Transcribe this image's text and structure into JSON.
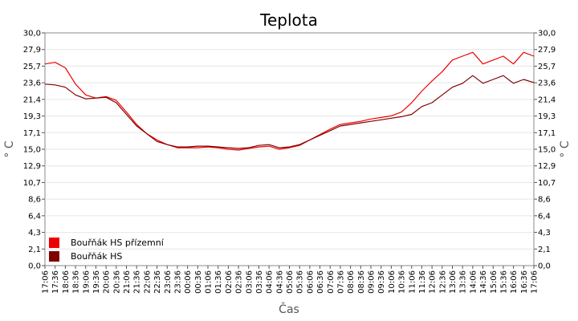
{
  "chart_data": {
    "type": "line",
    "title": "Teplota",
    "xlabel": "Čas",
    "ylabel": "° C",
    "ylabel_right": "° C",
    "ylim": [
      0,
      30
    ],
    "yticks": [
      "0,0",
      "2,1",
      "4,3",
      "6,4",
      "8,6",
      "10,7",
      "12,9",
      "15,0",
      "17,1",
      "19,3",
      "21,4",
      "23,6",
      "25,7",
      "27,9",
      "30,0"
    ],
    "xticks": [
      "17:06",
      "17:36",
      "18:06",
      "18:36",
      "19:06",
      "19:36",
      "20:06",
      "20:36",
      "21:06",
      "21:36",
      "22:06",
      "22:36",
      "23:06",
      "23:36",
      "00:06",
      "00:36",
      "01:06",
      "01:36",
      "02:06",
      "02:36",
      "03:06",
      "03:36",
      "04:06",
      "04:36",
      "05:06",
      "05:36",
      "06:06",
      "06:36",
      "07:06",
      "07:36",
      "08:06",
      "08:36",
      "09:06",
      "09:36",
      "10:06",
      "10:36",
      "11:06",
      "11:36",
      "12:06",
      "12:36",
      "13:06",
      "13:36",
      "14:06",
      "14:36",
      "15:06",
      "15:36",
      "16:06",
      "16:36",
      "17:06"
    ],
    "grid": true,
    "legend_position": "bottom-left",
    "series": [
      {
        "name": "Bouřňák HS přízemní",
        "color": "#ee0000",
        "values": [
          26.0,
          26.2,
          25.5,
          23.4,
          22.0,
          21.6,
          21.8,
          21.3,
          19.8,
          18.2,
          17.0,
          16.2,
          15.6,
          15.2,
          15.2,
          15.2,
          15.3,
          15.2,
          15.0,
          14.9,
          15.1,
          15.3,
          15.4,
          15.0,
          15.2,
          15.5,
          16.2,
          16.9,
          17.6,
          18.2,
          18.4,
          18.6,
          18.9,
          19.1,
          19.3,
          19.8,
          21.0,
          22.5,
          23.8,
          25.0,
          26.5,
          27.0,
          27.5,
          26.0,
          26.5,
          27.0,
          26.0,
          27.5,
          27.0
        ]
      },
      {
        "name": "Bouřňák HS",
        "color": "#800000",
        "values": [
          23.4,
          23.3,
          23.0,
          22.0,
          21.5,
          21.6,
          21.7,
          21.0,
          19.5,
          18.0,
          17.0,
          16.0,
          15.6,
          15.3,
          15.3,
          15.4,
          15.4,
          15.3,
          15.2,
          15.1,
          15.2,
          15.5,
          15.6,
          15.2,
          15.3,
          15.6,
          16.2,
          16.8,
          17.4,
          18.0,
          18.2,
          18.4,
          18.6,
          18.8,
          19.0,
          19.2,
          19.5,
          20.5,
          21.0,
          22.0,
          23.0,
          23.5,
          24.5,
          23.5,
          24.0,
          24.5,
          23.5,
          24.0,
          23.6
        ]
      }
    ]
  }
}
